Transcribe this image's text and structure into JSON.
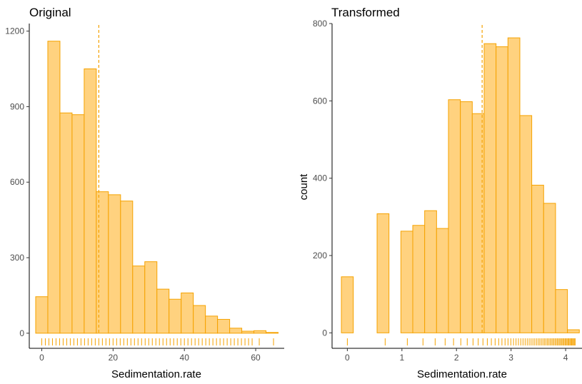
{
  "chart_data": [
    {
      "type": "histogram",
      "title": "Original",
      "xlabel": "Sedimentation.rate",
      "ylabel": "",
      "xlim": [
        -3.5,
        68
      ],
      "ylim": [
        -60,
        1230
      ],
      "xticks": [
        0,
        20,
        40,
        60
      ],
      "yticks": [
        0,
        300,
        600,
        900,
        1200
      ],
      "bins": [
        {
          "x0": -1.7,
          "x1": 1.7,
          "count": 145
        },
        {
          "x0": 1.7,
          "x1": 5.1,
          "count": 1160
        },
        {
          "x0": 5.1,
          "x1": 8.5,
          "count": 875
        },
        {
          "x0": 8.5,
          "x1": 11.9,
          "count": 868
        },
        {
          "x0": 11.9,
          "x1": 15.3,
          "count": 1050
        },
        {
          "x0": 15.3,
          "x1": 18.7,
          "count": 562
        },
        {
          "x0": 18.7,
          "x1": 22.1,
          "count": 550
        },
        {
          "x0": 22.1,
          "x1": 25.5,
          "count": 525
        },
        {
          "x0": 25.5,
          "x1": 28.9,
          "count": 267
        },
        {
          "x0": 28.9,
          "x1": 32.3,
          "count": 284
        },
        {
          "x0": 32.3,
          "x1": 35.7,
          "count": 175
        },
        {
          "x0": 35.7,
          "x1": 39.1,
          "count": 135
        },
        {
          "x0": 39.1,
          "x1": 42.5,
          "count": 160
        },
        {
          "x0": 42.5,
          "x1": 45.9,
          "count": 110
        },
        {
          "x0": 45.9,
          "x1": 49.3,
          "count": 68
        },
        {
          "x0": 49.3,
          "x1": 52.7,
          "count": 55
        },
        {
          "x0": 52.7,
          "x1": 56.1,
          "count": 20
        },
        {
          "x0": 56.1,
          "x1": 59.5,
          "count": 8
        },
        {
          "x0": 59.5,
          "x1": 62.9,
          "count": 10
        },
        {
          "x0": 62.9,
          "x1": 66.3,
          "count": 3
        }
      ],
      "vline": 16,
      "rug": [
        0,
        1,
        2,
        3,
        4,
        5,
        6,
        7,
        8,
        9,
        10,
        11,
        12,
        13,
        14,
        15,
        16,
        17,
        18,
        19,
        20,
        21,
        22,
        23,
        24,
        25,
        26,
        27,
        28,
        29,
        30,
        31,
        32,
        33,
        34,
        35,
        36,
        37,
        38,
        39,
        40,
        41,
        42,
        43,
        44,
        45,
        46,
        47,
        48,
        49,
        50,
        51,
        52,
        53,
        54,
        55,
        56,
        57,
        58,
        59,
        61,
        65
      ]
    },
    {
      "type": "histogram",
      "title": "Transformed",
      "xlabel": "Sedimentation.rate",
      "ylabel": "count",
      "xlim": [
        -0.28,
        4.3
      ],
      "ylim": [
        -40,
        800
      ],
      "xticks": [
        0,
        1,
        2,
        3,
        4
      ],
      "yticks": [
        0,
        200,
        400,
        600,
        800
      ],
      "bins": [
        {
          "x0": -0.109,
          "x1": 0.109,
          "count": 145
        },
        {
          "x0": 0.109,
          "x1": 0.327,
          "count": 0
        },
        {
          "x0": 0.327,
          "x1": 0.545,
          "count": 0
        },
        {
          "x0": 0.545,
          "x1": 0.763,
          "count": 308
        },
        {
          "x0": 0.763,
          "x1": 0.981,
          "count": 0
        },
        {
          "x0": 0.981,
          "x1": 1.199,
          "count": 263
        },
        {
          "x0": 1.199,
          "x1": 1.417,
          "count": 278
        },
        {
          "x0": 1.417,
          "x1": 1.635,
          "count": 316
        },
        {
          "x0": 1.635,
          "x1": 1.853,
          "count": 270
        },
        {
          "x0": 1.853,
          "x1": 2.071,
          "count": 603
        },
        {
          "x0": 2.071,
          "x1": 2.289,
          "count": 598
        },
        {
          "x0": 2.289,
          "x1": 2.507,
          "count": 567
        },
        {
          "x0": 2.507,
          "x1": 2.725,
          "count": 748
        },
        {
          "x0": 2.725,
          "x1": 2.943,
          "count": 740
        },
        {
          "x0": 2.943,
          "x1": 3.161,
          "count": 763
        },
        {
          "x0": 3.161,
          "x1": 3.379,
          "count": 562
        },
        {
          "x0": 3.379,
          "x1": 3.597,
          "count": 382
        },
        {
          "x0": 3.597,
          "x1": 3.815,
          "count": 335
        },
        {
          "x0": 3.815,
          "x1": 4.033,
          "count": 112
        },
        {
          "x0": 4.033,
          "x1": 4.251,
          "count": 8
        }
      ],
      "vline": 2.47,
      "rug": [
        0,
        0.693,
        1.099,
        1.386,
        1.609,
        1.792,
        1.946,
        2.079,
        2.197,
        2.303,
        2.398,
        2.485,
        2.565,
        2.639,
        2.708,
        2.773,
        2.833,
        2.89,
        2.944,
        2.996,
        3.045,
        3.091,
        3.135,
        3.178,
        3.219,
        3.258,
        3.296,
        3.332,
        3.367,
        3.401,
        3.434,
        3.466,
        3.497,
        3.526,
        3.555,
        3.584,
        3.611,
        3.638,
        3.664,
        3.689,
        3.714,
        3.738,
        3.761,
        3.784,
        3.807,
        3.829,
        3.85,
        3.871,
        3.892,
        3.912,
        3.932,
        3.951,
        3.97,
        3.989,
        4.007,
        4.025,
        4.043,
        4.06,
        4.078,
        4.094,
        4.111,
        4.127,
        4.143,
        4.159,
        4.174
      ]
    }
  ]
}
